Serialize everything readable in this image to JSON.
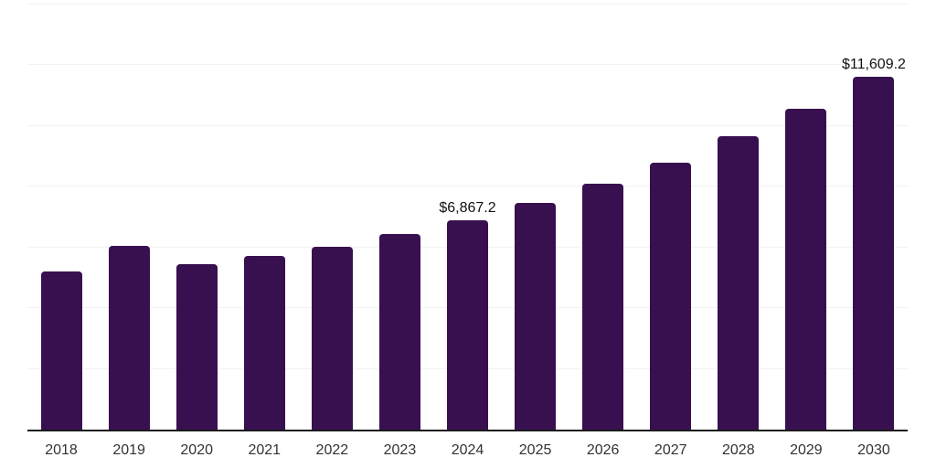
{
  "chart_data": {
    "type": "bar",
    "title": "",
    "xlabel": "",
    "ylabel": "",
    "categories": [
      "2018",
      "2019",
      "2020",
      "2021",
      "2022",
      "2023",
      "2024",
      "2025",
      "2026",
      "2027",
      "2028",
      "2029",
      "2030"
    ],
    "values": [
      5200,
      6040,
      5440,
      5700,
      6020,
      6440,
      6867.2,
      7440,
      8090,
      8780,
      9630,
      10560,
      11609.2
    ],
    "data_labels": [
      "",
      "",
      "",
      "",
      "",
      "",
      "$6,867.2",
      "",
      "",
      "",
      "",
      "",
      "$11,609.2"
    ],
    "ylim": [
      0,
      14000
    ],
    "gridline_step": 2000,
    "grid": true,
    "legend_position": "none",
    "y_tick_labels_visible": false,
    "colors": {
      "bar": "#38104F",
      "gridline": "#f2f2f3",
      "axis_line": "#1a1a1a",
      "tick_label": "#333333",
      "data_label": "#111111",
      "background": "#ffffff"
    }
  }
}
